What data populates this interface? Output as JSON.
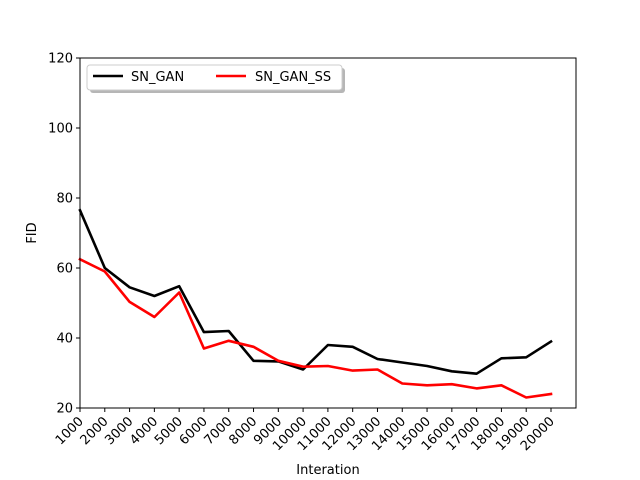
{
  "chart_data": {
    "type": "line",
    "xlabel": "Interation",
    "ylabel": "FID",
    "ylim": [
      20,
      120
    ],
    "yticks": [
      "20",
      "40",
      "60",
      "80",
      "100",
      "120"
    ],
    "categories": [
      "1000",
      "2000",
      "3000",
      "4000",
      "5000",
      "6000",
      "7000",
      "8000",
      "9000",
      "10000",
      "11000",
      "12000",
      "13000",
      "14000",
      "15000",
      "16000",
      "17000",
      "18000",
      "19000",
      "20000"
    ],
    "legend_placement": "upper-left",
    "grid": false,
    "series": [
      {
        "name": "SN_GAN",
        "color": "#000000",
        "values": [
          76.5,
          60.0,
          54.5,
          52.0,
          54.8,
          41.7,
          42.0,
          33.5,
          33.3,
          31.0,
          38.0,
          37.5,
          34.0,
          33.0,
          32.0,
          30.5,
          29.8,
          34.2,
          34.5,
          39.0
        ]
      },
      {
        "name": "SN_GAN_SS",
        "color": "#ff0000",
        "values": [
          62.5,
          59.0,
          50.3,
          46.0,
          53.0,
          37.0,
          39.2,
          37.5,
          33.5,
          31.8,
          32.0,
          30.7,
          31.0,
          27.0,
          26.5,
          26.8,
          25.6,
          26.5,
          23.0,
          24.0
        ]
      }
    ]
  }
}
